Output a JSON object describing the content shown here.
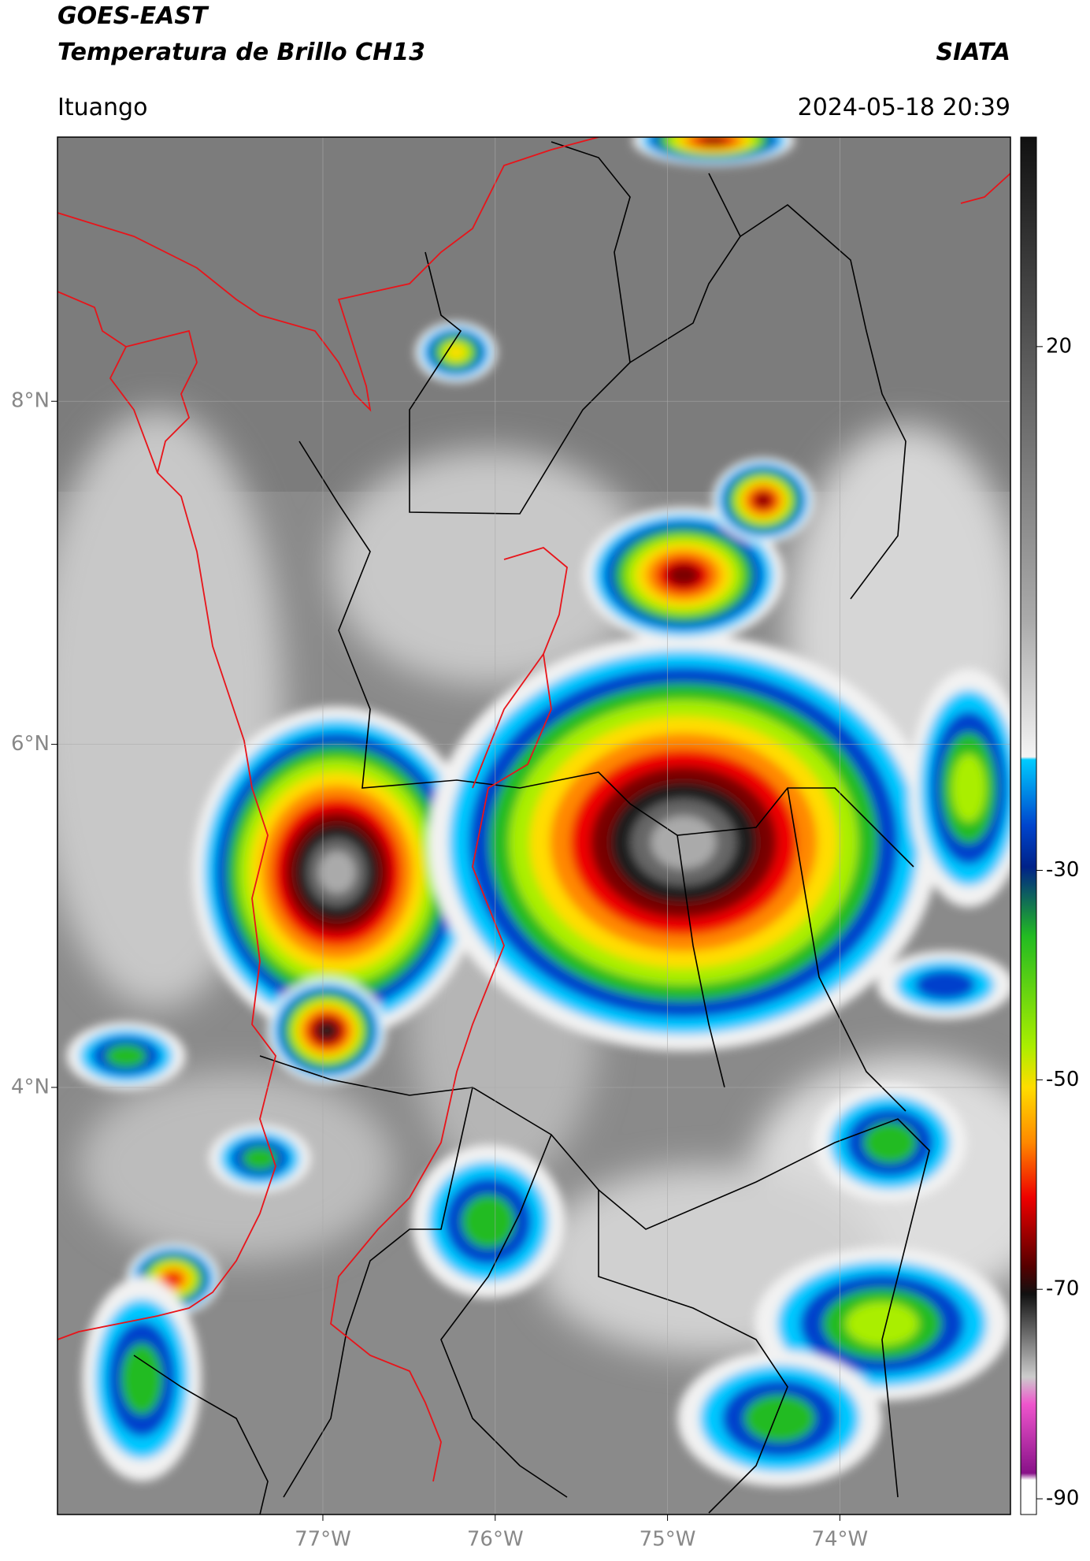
{
  "header": {
    "title_line1": "GOES-EAST",
    "title_line2": "Temperatura de Brillo CH13",
    "source": "SIATA",
    "location": "Ituango",
    "timestamp": "2024-05-18 20:39"
  },
  "map": {
    "latlim": [
      1.51,
      9.54
    ],
    "lonlim": [
      -78.54,
      -73.01
    ],
    "lat_ticks": [
      {
        "value": 8,
        "label": "8°N"
      },
      {
        "value": 6,
        "label": "6°N"
      },
      {
        "value": 4,
        "label": "4°N"
      }
    ],
    "lon_ticks": [
      {
        "value": -77,
        "label": "77°W"
      },
      {
        "value": -76,
        "label": "76°W"
      },
      {
        "value": -75,
        "label": "75°W"
      },
      {
        "value": -74,
        "label": "74°W"
      }
    ],
    "grid": true
  },
  "colorbar": {
    "lim": [
      -91.5,
      40
    ],
    "ticks": [
      20,
      -30,
      -50,
      -70,
      -90
    ]
  }
}
